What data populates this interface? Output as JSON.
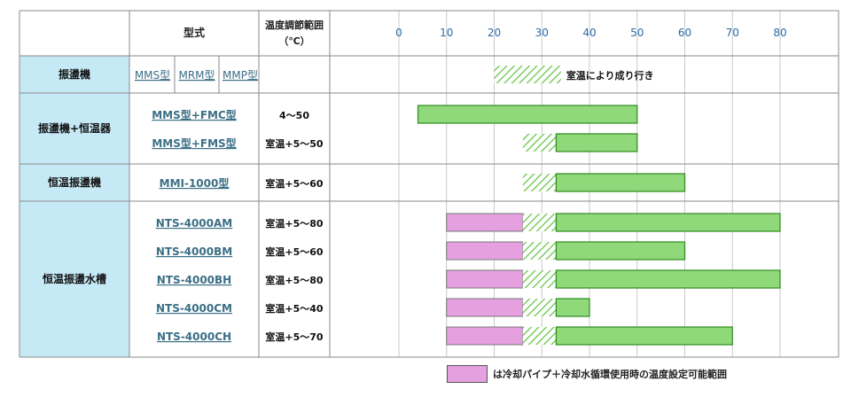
{
  "chart_data": {
    "type": "bar",
    "headers": {
      "col1": "",
      "col2": "型式",
      "col3_line1": "温度調節範囲",
      "col3_line2": "（℃）"
    },
    "axis": {
      "min": 0,
      "max": 80,
      "ticks": [
        0,
        10,
        20,
        30,
        40,
        50,
        60,
        70,
        80
      ],
      "tick_labels": [
        "0",
        "10",
        "20",
        "30",
        "40",
        "50",
        "60",
        "70",
        "80"
      ]
    },
    "groups": [
      {
        "name": "振盪機",
        "rows": [
          {
            "model": "",
            "links": [
              "MMS型",
              "MRM型",
              "MMP型"
            ],
            "range_text": "",
            "segments": [
              {
                "kind": "hatch",
                "from": 20,
                "to": 34
              }
            ],
            "note": "室温により成り行き"
          }
        ]
      },
      {
        "name": "振盪機+恒温器",
        "rows": [
          {
            "model": "MMS型+FMC型",
            "range_text": "4～50",
            "segments": [
              {
                "kind": "green",
                "from": 4,
                "to": 50
              }
            ]
          },
          {
            "model": "MMS型+FMS型",
            "range_text": "室温+5～50",
            "segments": [
              {
                "kind": "hatch",
                "from": 26,
                "to": 33
              },
              {
                "kind": "green",
                "from": 33,
                "to": 50
              }
            ]
          }
        ]
      },
      {
        "name": "恒温振盪機",
        "rows": [
          {
            "model": "MMI-1000型",
            "range_text": "室温+5～60",
            "segments": [
              {
                "kind": "hatch",
                "from": 26,
                "to": 33
              },
              {
                "kind": "green",
                "from": 33,
                "to": 60
              }
            ]
          }
        ]
      },
      {
        "name": "恒温振盪水槽",
        "rows": [
          {
            "model": "NTS-4000AM",
            "range_text": "室温+5～80",
            "segments": [
              {
                "kind": "pink",
                "from": 10,
                "to": 26
              },
              {
                "kind": "hatch",
                "from": 26,
                "to": 33
              },
              {
                "kind": "green",
                "from": 33,
                "to": 80
              }
            ]
          },
          {
            "model": "NTS-4000BM",
            "range_text": "室温+5～60",
            "segments": [
              {
                "kind": "pink",
                "from": 10,
                "to": 26
              },
              {
                "kind": "hatch",
                "from": 26,
                "to": 33
              },
              {
                "kind": "green",
                "from": 33,
                "to": 60
              }
            ]
          },
          {
            "model": "NTS-4000BH",
            "range_text": "室温+5～80",
            "segments": [
              {
                "kind": "pink",
                "from": 10,
                "to": 26
              },
              {
                "kind": "hatch",
                "from": 26,
                "to": 33
              },
              {
                "kind": "green",
                "from": 33,
                "to": 80
              }
            ]
          },
          {
            "model": "NTS-4000CM",
            "range_text": "室温+5～40",
            "segments": [
              {
                "kind": "pink",
                "from": 10,
                "to": 26
              },
              {
                "kind": "hatch",
                "from": 26,
                "to": 33
              },
              {
                "kind": "green",
                "from": 33,
                "to": 40
              }
            ]
          },
          {
            "model": "NTS-4000CH",
            "range_text": "室温+5～70",
            "segments": [
              {
                "kind": "pink",
                "from": 10,
                "to": 26
              },
              {
                "kind": "hatch",
                "from": 26,
                "to": 33
              },
              {
                "kind": "green",
                "from": 33,
                "to": 70
              }
            ]
          }
        ]
      }
    ],
    "legend": {
      "label": "は冷却パイプ＋冷却水循環使用時の温度設定可能範囲"
    },
    "colors": {
      "green": "#8fd97a",
      "green_border": "#2f8a1e",
      "pink": "#e4a0df",
      "hatch_line": "#7ccd5e",
      "group_bg": "#c6e9f6",
      "link": "#3b6f86",
      "grid": "#c8c8c8",
      "axis_label": "#2b6da8",
      "border": "#8a8a8a"
    }
  }
}
